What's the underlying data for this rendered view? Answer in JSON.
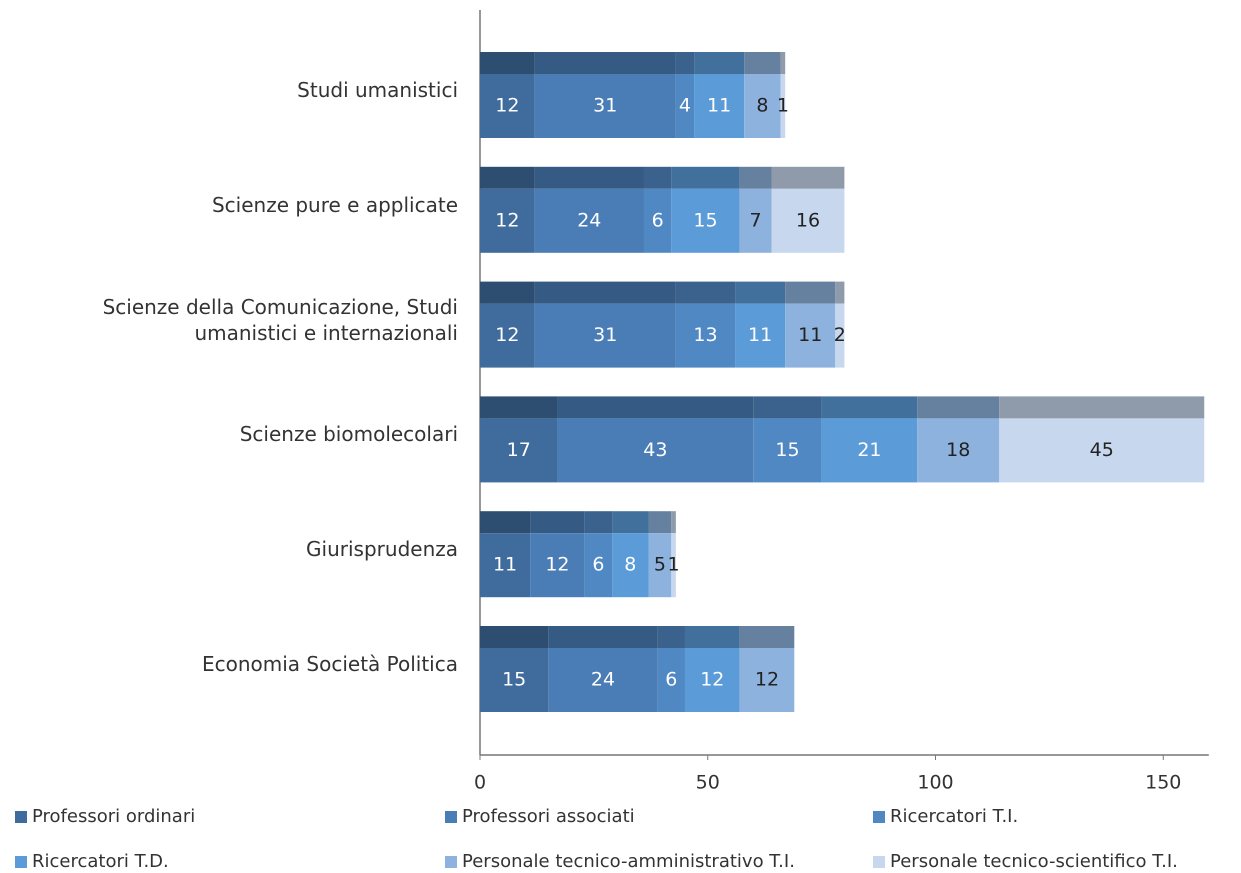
{
  "chart_data": {
    "type": "stacked_bar_horizontal",
    "categories": [
      "Studi umanistici",
      "Scienze pure e applicate",
      "Scienze della Comunicazione, Studi umanistici e internazionali",
      "Scienze biomolecolari",
      "Giurisprudenza",
      "Economia Società Politica"
    ],
    "series": [
      {
        "name": "Professori ordinari",
        "color": "#3f6c9c",
        "label_color": "#ffffff",
        "values": [
          12,
          12,
          12,
          17,
          11,
          15
        ]
      },
      {
        "name": "Professori associati",
        "color": "#4a7db6",
        "label_color": "#ffffff",
        "values": [
          31,
          24,
          31,
          43,
          12,
          24
        ]
      },
      {
        "name": "Ricercatori T.I.",
        "color": "#5088c4",
        "label_color": "#ffffff",
        "values": [
          4,
          6,
          13,
          15,
          6,
          6
        ]
      },
      {
        "name": "Ricercatori T.D.",
        "color": "#5b9bd8",
        "label_color": "#ffffff",
        "values": [
          11,
          15,
          11,
          21,
          8,
          12
        ]
      },
      {
        "name": "Personale tecnico-amministrativo T.I.",
        "color": "#8db2de",
        "label_color": "#222222",
        "values": [
          8,
          7,
          11,
          18,
          5,
          12
        ]
      },
      {
        "name": "Personale tecnico-scientifico T.I.",
        "color": "#c6d7ee",
        "label_color": "#222222",
        "values": [
          1,
          16,
          2,
          45,
          1,
          null
        ]
      }
    ],
    "xlim": [
      0,
      160
    ],
    "xticks": [
      0,
      50,
      100,
      150
    ]
  }
}
